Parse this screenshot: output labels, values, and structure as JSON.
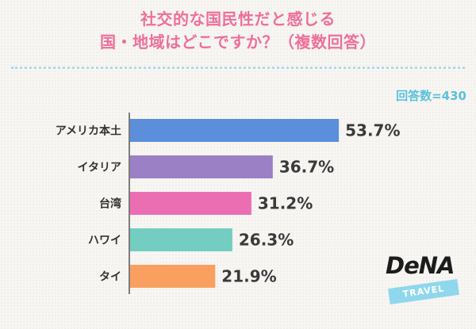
{
  "title_line1": "社交的な国民性だと感じる",
  "title_line2": "国・地域はどこですか？（複数回答）",
  "respondents": "回答数=430",
  "logo": {
    "brand": "DeNA",
    "tag": "TRAVEL"
  },
  "colors": {
    "title": "#ee6f9b",
    "respondents": "#5cc1dc",
    "divider": "#a9dceb"
  },
  "chart_data": {
    "type": "bar",
    "orientation": "horizontal",
    "categories": [
      "アメリカ本土",
      "イタリア",
      "台湾",
      "ハワイ",
      "タイ"
    ],
    "values": [
      53.7,
      36.7,
      31.2,
      26.3,
      21.9
    ],
    "value_labels": [
      "53.7%",
      "36.7%",
      "31.2%",
      "26.3%",
      "21.9%"
    ],
    "colors": [
      "#5b8edb",
      "#9b80c6",
      "#eb6eb3",
      "#73cdc0",
      "#f9a060"
    ],
    "unit": "%",
    "xlim": [
      0,
      100
    ],
    "grid": false,
    "legend": "none"
  }
}
